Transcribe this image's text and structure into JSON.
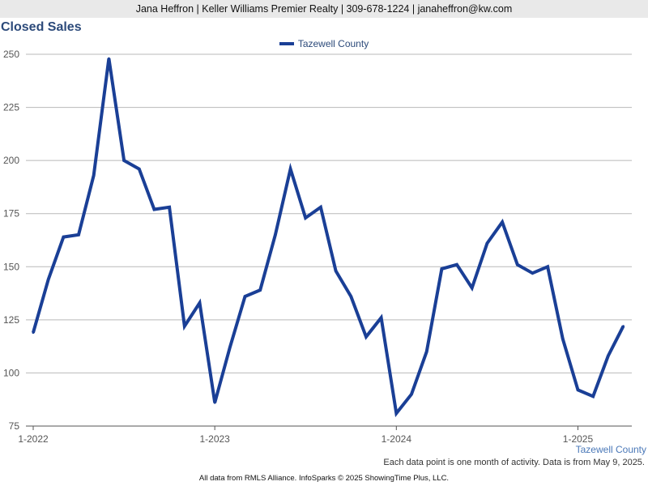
{
  "header": {
    "contact": "Jana Heffron | Keller Williams Premier Realty | 309-678-1224 | janaheffron@kw.com"
  },
  "chart_data": {
    "type": "line",
    "title": "Closed Sales",
    "xlabel": "",
    "ylabel": "",
    "ylim": [
      75,
      250
    ],
    "yticks": [
      75,
      100,
      125,
      150,
      175,
      200,
      225,
      250
    ],
    "xtick_labels": [
      "1-2022",
      "1-2023",
      "1-2024",
      "1-2025"
    ],
    "x_start": "1-2022",
    "grid": true,
    "legend_position": "top-center",
    "series": [
      {
        "name": "Tazewell County",
        "color": "#1a3f96",
        "values": [
          119,
          144,
          164,
          165,
          193,
          248,
          200,
          196,
          177,
          178,
          122,
          133,
          86,
          112,
          136,
          139,
          165,
          196,
          173,
          178,
          148,
          136,
          117,
          126,
          81,
          90,
          110,
          149,
          151,
          140,
          161,
          171,
          151,
          147,
          150,
          116,
          92,
          89,
          108,
          122
        ]
      }
    ]
  },
  "labels": {
    "area": "Tazewell County",
    "note": "Each data point is one month of activity. Data is from May 9, 2025.",
    "footer": "All data from RMLS Alliance. InfoSparks © 2025 ShowingTime Plus, LLC."
  }
}
